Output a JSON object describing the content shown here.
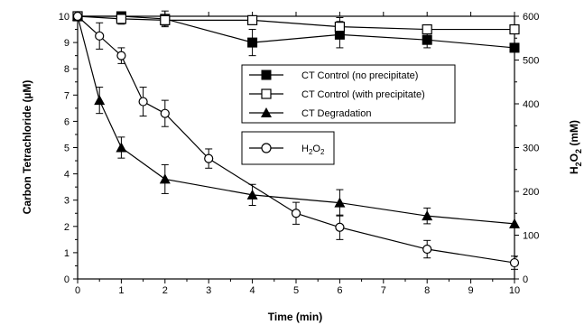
{
  "chart_data": {
    "type": "line",
    "xlabel": "Time (min)",
    "ylabel": "Carbon Tetrachloride (µM)",
    "y2label_main": "H",
    "y2label_sub": "2",
    "y2label_main2": "O",
    "y2label_sub2": "2",
    "y2label_unit": " (mM)",
    "xlim": [
      0,
      10
    ],
    "ylim": [
      0,
      10
    ],
    "y2lim": [
      0,
      600
    ],
    "x_ticks": [
      "0",
      "1",
      "2",
      "3",
      "4",
      "5",
      "6",
      "7",
      "8",
      "9",
      "10"
    ],
    "y_ticks": [
      "0",
      "1",
      "2",
      "3",
      "4",
      "5",
      "6",
      "7",
      "8",
      "9",
      "10"
    ],
    "y2_ticks": [
      "0",
      "100",
      "200",
      "300",
      "400",
      "500",
      "600"
    ],
    "grid": false,
    "series": [
      {
        "name": "CT Control (no precipitate)",
        "marker": "filled-square",
        "axis": "left",
        "x": [
          0,
          1,
          2,
          4,
          6,
          8,
          10
        ],
        "y": [
          10,
          10,
          9.9,
          9.0,
          9.3,
          9.1,
          8.8
        ],
        "err": [
          0,
          0.15,
          0.3,
          0.5,
          0.5,
          0.3,
          0
        ]
      },
      {
        "name": "CT Control (with precipitate)",
        "marker": "open-square",
        "axis": "left",
        "x": [
          0,
          1,
          2,
          4,
          6,
          8,
          10
        ],
        "y": [
          10,
          9.9,
          9.85,
          9.85,
          9.6,
          9.5,
          9.5
        ],
        "err": [
          0,
          0.2,
          0.2,
          0,
          0.35,
          0,
          0
        ]
      },
      {
        "name": "CT Degradation",
        "marker": "filled-triangle",
        "axis": "left",
        "x": [
          0,
          0.5,
          1,
          2,
          4,
          6,
          8,
          10
        ],
        "y": [
          10,
          6.8,
          5.0,
          3.8,
          3.2,
          2.9,
          2.4,
          2.1
        ],
        "err": [
          0,
          0.5,
          0.4,
          0.55,
          0.4,
          0.5,
          0.3,
          0
        ]
      },
      {
        "name_main": "H",
        "name_sub": "2",
        "name_main2": "O",
        "name_sub2": "2",
        "marker": "open-circle",
        "axis": "right",
        "x": [
          0,
          0.5,
          1,
          1.5,
          2,
          3,
          5,
          6,
          8,
          10
        ],
        "y": [
          600,
          555,
          510,
          405,
          378,
          275,
          150,
          118,
          68,
          37
        ],
        "err": [
          0,
          30,
          18,
          33,
          30,
          22,
          25,
          28,
          20,
          15
        ]
      }
    ]
  }
}
